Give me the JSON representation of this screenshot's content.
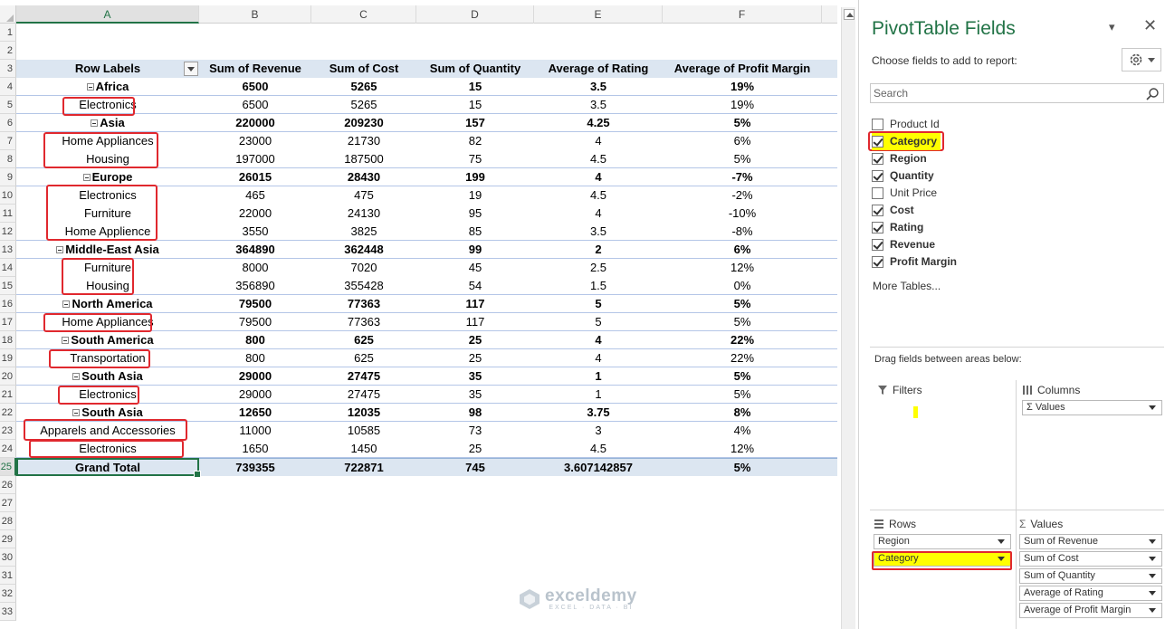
{
  "columns": [
    "A",
    "B",
    "C",
    "D",
    "E",
    "F"
  ],
  "row_numbers": [
    "1",
    "2",
    "3",
    "4",
    "5",
    "6",
    "7",
    "8",
    "9",
    "10",
    "11",
    "12",
    "13",
    "14",
    "15",
    "16",
    "17",
    "18",
    "19",
    "20",
    "21",
    "22",
    "23",
    "24",
    "25",
    "26",
    "27",
    "28",
    "29",
    "30",
    "31",
    "32",
    "33"
  ],
  "pivot": {
    "header": [
      "Row Labels",
      "Sum of Revenue",
      "Sum of Cost",
      "Sum of Quantity",
      "Average of Rating",
      "Average of Profit Margin"
    ],
    "rows": [
      {
        "type": "region",
        "cells": [
          "Africa",
          "6500",
          "5265",
          "15",
          "3.5",
          "19%"
        ]
      },
      {
        "type": "item",
        "cells": [
          "Electronics",
          "6500",
          "5265",
          "15",
          "3.5",
          "19%"
        ]
      },
      {
        "type": "region",
        "cells": [
          "Asia",
          "220000",
          "209230",
          "157",
          "4.25",
          "5%"
        ]
      },
      {
        "type": "item",
        "cells": [
          "Home Appliances",
          "23000",
          "21730",
          "82",
          "4",
          "6%"
        ]
      },
      {
        "type": "item",
        "cells": [
          "Housing",
          "197000",
          "187500",
          "75",
          "4.5",
          "5%"
        ]
      },
      {
        "type": "region",
        "cells": [
          "Europe",
          "26015",
          "28430",
          "199",
          "4",
          "-7%"
        ]
      },
      {
        "type": "item",
        "cells": [
          "Electronics",
          "465",
          "475",
          "19",
          "4.5",
          "-2%"
        ]
      },
      {
        "type": "item",
        "cells": [
          "Furniture",
          "22000",
          "24130",
          "95",
          "4",
          "-10%"
        ]
      },
      {
        "type": "item",
        "cells": [
          "Home Applience",
          "3550",
          "3825",
          "85",
          "3.5",
          "-8%"
        ]
      },
      {
        "type": "region",
        "cells": [
          "Middle-East Asia",
          "364890",
          "362448",
          "99",
          "2",
          "6%"
        ]
      },
      {
        "type": "item",
        "cells": [
          "Furniture",
          "8000",
          "7020",
          "45",
          "2.5",
          "12%"
        ]
      },
      {
        "type": "item",
        "cells": [
          "Housing",
          "356890",
          "355428",
          "54",
          "1.5",
          "0%"
        ]
      },
      {
        "type": "region",
        "cells": [
          "North America",
          "79500",
          "77363",
          "117",
          "5",
          "5%"
        ]
      },
      {
        "type": "item",
        "cells": [
          "Home Appliances",
          "79500",
          "77363",
          "117",
          "5",
          "5%"
        ]
      },
      {
        "type": "region",
        "cells": [
          "South America",
          "800",
          "625",
          "25",
          "4",
          "22%"
        ]
      },
      {
        "type": "item",
        "cells": [
          "Transportation",
          "800",
          "625",
          "25",
          "4",
          "22%"
        ]
      },
      {
        "type": "region",
        "cells": [
          "South Asia",
          "29000",
          "27475",
          "35",
          "1",
          "5%"
        ]
      },
      {
        "type": "item",
        "cells": [
          "Electronics",
          "29000",
          "27475",
          "35",
          "1",
          "5%"
        ]
      },
      {
        "type": "region",
        "cells": [
          "South Asia",
          "12650",
          "12035",
          "98",
          "3.75",
          "8%"
        ]
      },
      {
        "type": "item",
        "cells": [
          "Apparels and Accessories",
          "11000",
          "10585",
          "73",
          "3",
          "4%"
        ]
      },
      {
        "type": "item",
        "cells": [
          "Electronics",
          "1650",
          "1450",
          "25",
          "4.5",
          "12%"
        ]
      }
    ],
    "grand_total": [
      "Grand Total",
      "739355",
      "722871",
      "745",
      "3.607142857",
      "5%"
    ]
  },
  "watermark": {
    "name": "exceldemy",
    "tagline": "EXCEL · DATA · BI"
  },
  "pane": {
    "title": "PivotTable Fields",
    "subtitle": "Choose fields to add to report:",
    "search_placeholder": "Search",
    "fields": [
      {
        "label": "Product Id",
        "checked": false
      },
      {
        "label": "Category",
        "checked": true
      },
      {
        "label": "Region",
        "checked": true
      },
      {
        "label": "Quantity",
        "checked": true
      },
      {
        "label": "Unit Price",
        "checked": false
      },
      {
        "label": "Cost",
        "checked": true
      },
      {
        "label": "Rating",
        "checked": true
      },
      {
        "label": "Revenue",
        "checked": true
      },
      {
        "label": "Profit Margin",
        "checked": true
      }
    ],
    "more_tables": "More Tables...",
    "drag_label": "Drag fields between areas below:",
    "areas": {
      "filters": {
        "title": "Filters",
        "items": []
      },
      "columns": {
        "title": "Columns",
        "items": [
          "Σ Values"
        ]
      },
      "rows": {
        "title": "Rows",
        "items": [
          "Region",
          "Category"
        ]
      },
      "values": {
        "title": "Values",
        "items": [
          "Sum of Revenue",
          "Sum of Cost",
          "Sum of Quantity",
          "Average of Rating",
          "Average of Profit Margin"
        ]
      }
    }
  },
  "colors": {
    "accent": "#217346",
    "header_fill": "#dce6f1",
    "highlight_red": "#e0282e",
    "highlight_yellow": "#ffff00"
  }
}
